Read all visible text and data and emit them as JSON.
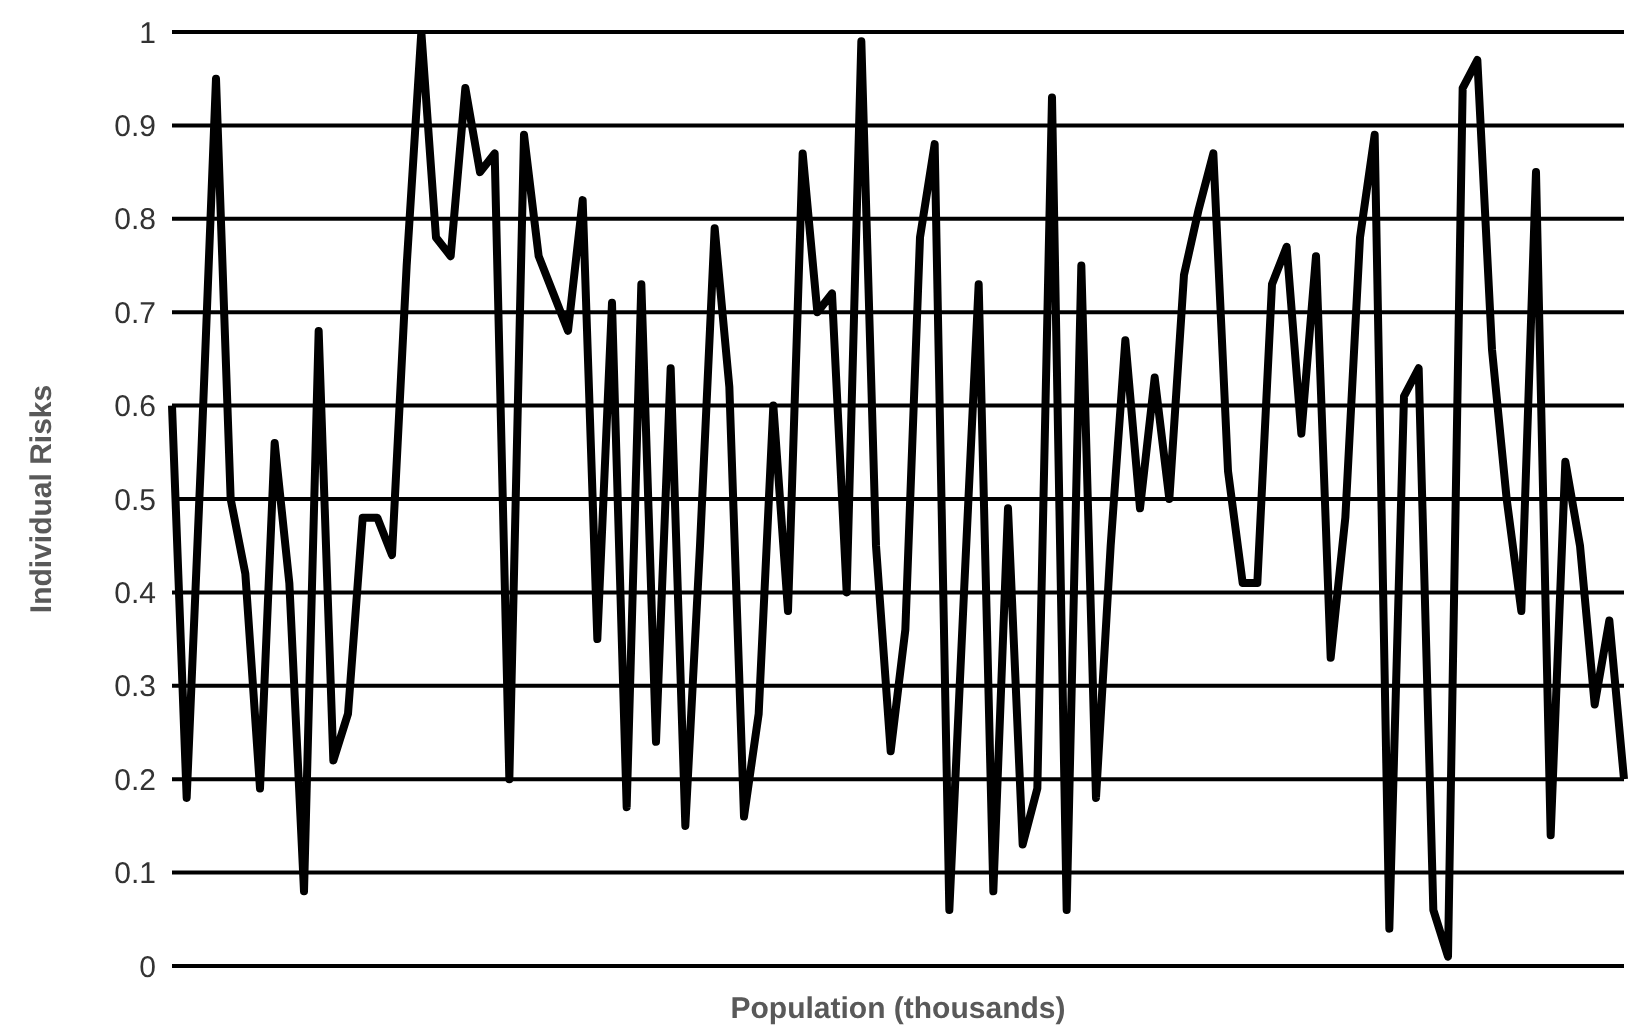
{
  "chart_data": {
    "type": "line",
    "xlabel": "Population (thousands)",
    "ylabel": "Individual Risks",
    "categories": [
      null,
      null,
      null,
      null,
      null,
      null,
      null,
      null,
      null,
      null,
      null,
      null,
      null,
      null,
      null,
      null,
      null,
      null,
      null,
      null,
      null,
      null,
      null,
      null,
      null,
      null,
      null,
      null,
      null,
      null,
      null,
      null,
      null,
      null,
      null,
      null,
      null,
      null,
      null,
      null,
      null,
      null,
      null,
      null,
      null,
      null,
      null,
      null,
      null,
      null,
      null,
      null,
      null,
      null,
      null,
      null,
      null,
      null,
      null,
      null,
      null,
      null,
      null,
      null,
      null,
      null,
      null,
      null,
      null,
      null,
      null,
      null,
      null,
      null,
      null,
      null,
      null,
      null,
      null,
      null,
      null,
      null,
      null,
      null,
      null,
      null,
      null,
      null,
      null,
      null,
      null,
      null,
      null,
      null,
      null,
      null,
      null,
      null,
      null,
      null
    ],
    "series": [
      {
        "color": "#000000",
        "values": [
          0.6,
          0.18,
          0.55,
          0.95,
          0.5,
          0.42,
          0.19,
          0.56,
          0.41,
          0.08,
          0.68,
          0.22,
          0.27,
          0.48,
          0.48,
          0.44,
          0.75,
          1.0,
          0.78,
          0.76,
          0.94,
          0.85,
          0.87,
          0.2,
          0.89,
          0.76,
          0.72,
          0.68,
          0.82,
          0.35,
          0.71,
          0.17,
          0.73,
          0.24,
          0.64,
          0.15,
          0.45,
          0.79,
          0.62,
          0.16,
          0.27,
          0.6,
          0.38,
          0.87,
          0.7,
          0.72,
          0.4,
          0.99,
          0.45,
          0.23,
          0.36,
          0.78,
          0.88,
          0.06,
          0.4,
          0.73,
          0.08,
          0.49,
          0.13,
          0.19,
          0.93,
          0.06,
          0.75,
          0.18,
          0.45,
          0.67,
          0.49,
          0.63,
          0.5,
          0.74,
          0.81,
          0.87,
          0.53,
          0.41,
          0.41,
          0.73,
          0.77,
          0.57,
          0.76,
          0.33,
          0.48,
          0.78,
          0.89,
          0.04,
          0.61,
          0.64,
          0.06,
          0.01,
          0.94,
          0.97,
          0.66,
          0.5,
          0.38,
          0.85,
          0.14,
          0.54,
          0.45,
          0.28,
          0.37,
          0.2
        ]
      }
    ],
    "ylim": [
      0,
      1
    ],
    "yticks": [
      0,
      0.1,
      0.2,
      0.3,
      0.4,
      0.5,
      0.6,
      0.7,
      0.8,
      0.9,
      1
    ],
    "grid": "y",
    "marker": "none",
    "line_style": "solid"
  }
}
